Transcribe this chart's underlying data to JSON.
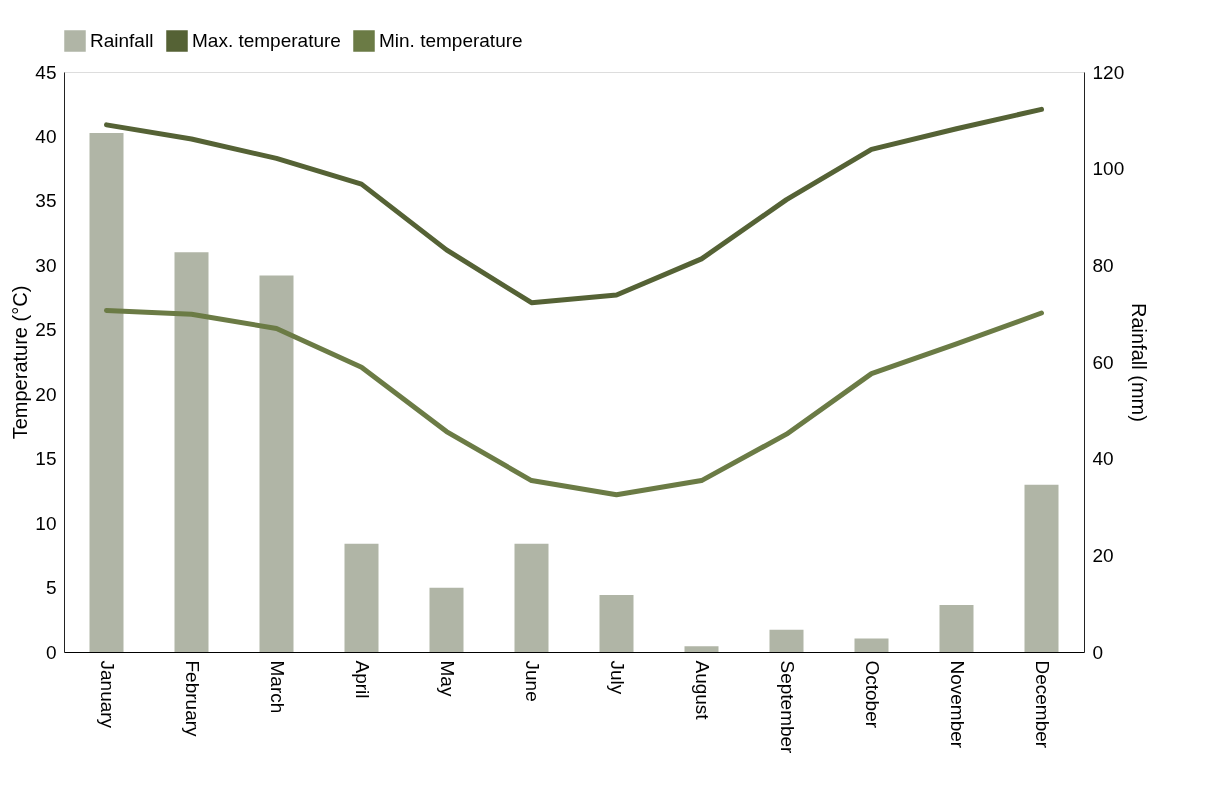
{
  "chart_data": {
    "type": "bar",
    "xlabel": null,
    "ylabel": "Temperature (°C)",
    "y2label": "Rainfall (mm)",
    "categories": [
      "January",
      "February",
      "March",
      "April",
      "May",
      "June",
      "July",
      "August",
      "September",
      "October",
      "November",
      "December"
    ],
    "series": [
      {
        "name": "Rainfall",
        "axis": "y2",
        "color": "#b0b5a6",
        "values": [
          107.4,
          82.7,
          77.9,
          22.4,
          13.3,
          22.4,
          11.8,
          1.2,
          4.6,
          2.8,
          9.7,
          34.6
        ]
      },
      {
        "name": "Max. temperature",
        "type": "line",
        "color": "#556235",
        "values": [
          40.9,
          39.8,
          38.3,
          36.3,
          31.2,
          27.1,
          27.7,
          30.5,
          35.1,
          39.0,
          40.6,
          42.1
        ]
      },
      {
        "name": "Min. temperature",
        "type": "line",
        "color": "#6b7b45",
        "values": [
          26.5,
          26.2,
          25.1,
          22.1,
          17.1,
          13.3,
          12.2,
          13.3,
          16.9,
          21.6,
          23.9,
          26.3
        ]
      }
    ],
    "ylim": [
      0,
      45
    ],
    "yticks": [
      0,
      5,
      10,
      15,
      20,
      25,
      30,
      35,
      40,
      45
    ],
    "y2lim": [
      0,
      120
    ],
    "y2ticks": [
      0,
      20,
      40,
      60,
      80,
      100,
      120
    ],
    "legend": "top",
    "grid": false,
    "marker": "none",
    "line_style": "solid"
  }
}
